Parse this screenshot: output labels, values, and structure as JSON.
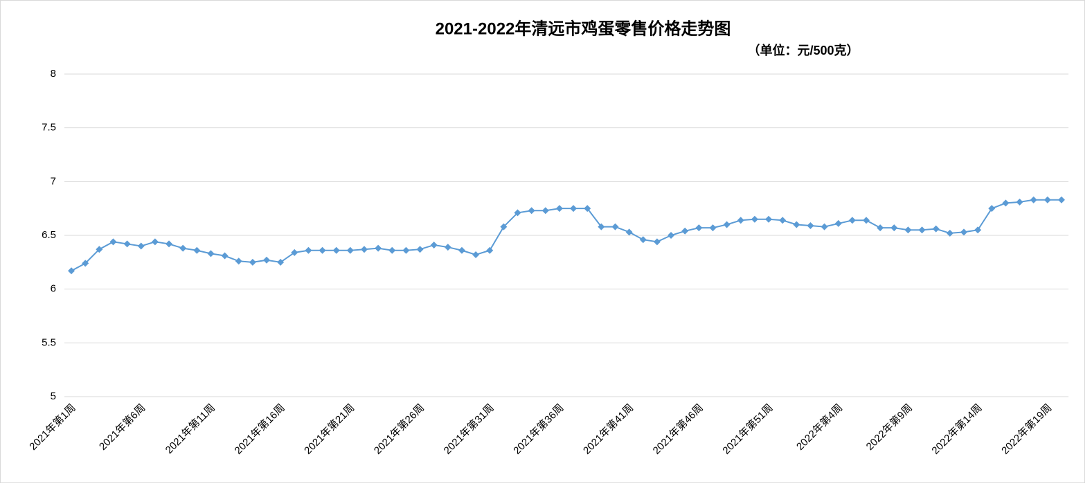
{
  "chart_data": {
    "type": "line",
    "title": "2021-2022年清远市鸡蛋零售价格走势图",
    "subtitle": "（单位：元/500克）",
    "categories": [
      "2021年第1周",
      null,
      null,
      null,
      null,
      "2021年第6周",
      null,
      null,
      null,
      null,
      "2021年第11周",
      null,
      null,
      null,
      null,
      "2021年第16周",
      null,
      null,
      null,
      null,
      "2021年第21周",
      null,
      null,
      null,
      null,
      "2021年第26周",
      null,
      null,
      null,
      null,
      "2021年第31周",
      null,
      null,
      null,
      null,
      "2021年第36周",
      null,
      null,
      null,
      null,
      "2021年第41周",
      null,
      null,
      null,
      null,
      "2021年第46周",
      null,
      null,
      null,
      null,
      "2021年第51周",
      null,
      null,
      null,
      null,
      "2022年第4周",
      null,
      null,
      null,
      null,
      "2022年第9周",
      null,
      null,
      null,
      null,
      "2022年第14周",
      null,
      null,
      null,
      null,
      "2022年第19周",
      null
    ],
    "series": [
      {
        "color": "#5b9bd5",
        "values": [
          6.17,
          6.24,
          6.37,
          6.44,
          6.42,
          6.4,
          6.44,
          6.42,
          6.38,
          6.36,
          6.33,
          6.31,
          6.26,
          6.25,
          6.27,
          6.25,
          6.34,
          6.36,
          6.36,
          6.36,
          6.36,
          6.37,
          6.38,
          6.36,
          6.36,
          6.37,
          6.41,
          6.39,
          6.36,
          6.32,
          6.36,
          6.58,
          6.71,
          6.73,
          6.73,
          6.75,
          6.75,
          6.75,
          6.58,
          6.58,
          6.53,
          6.46,
          6.44,
          6.5,
          6.54,
          6.57,
          6.57,
          6.6,
          6.64,
          6.65,
          6.65,
          6.64,
          6.6,
          6.59,
          6.58,
          6.61,
          6.64,
          6.64,
          6.57,
          6.57,
          6.55,
          6.55,
          6.56,
          6.52,
          6.53,
          6.55,
          6.75,
          6.8,
          6.81,
          6.83,
          6.83,
          6.83
        ]
      }
    ],
    "ylim": [
      5,
      8
    ],
    "yticks": [
      5,
      5.5,
      6,
      6.5,
      7,
      7.5,
      8
    ],
    "grid": true
  }
}
